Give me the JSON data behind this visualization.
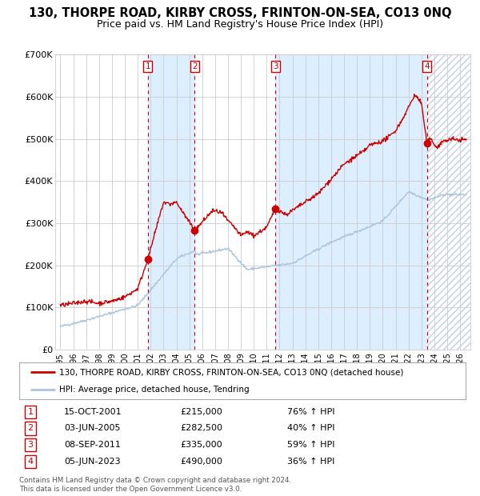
{
  "title": "130, THORPE ROAD, KIRBY CROSS, FRINTON-ON-SEA, CO13 0NQ",
  "subtitle": "Price paid vs. HM Land Registry's House Price Index (HPI)",
  "ylim": [
    0,
    700000
  ],
  "yticks": [
    0,
    100000,
    200000,
    300000,
    400000,
    500000,
    600000,
    700000
  ],
  "ytick_labels": [
    "£0",
    "£100K",
    "£200K",
    "£300K",
    "£400K",
    "£500K",
    "£600K",
    "£700K"
  ],
  "xlim_start": 1994.6,
  "xlim_end": 2026.8,
  "purchases": [
    {
      "num": 1,
      "date": "15-OCT-2001",
      "year": 2001.79,
      "price": 215000,
      "pct": "76%",
      "dir": "↑"
    },
    {
      "num": 2,
      "date": "03-JUN-2005",
      "year": 2005.42,
      "price": 282500,
      "pct": "40%",
      "dir": "↑"
    },
    {
      "num": 3,
      "date": "08-SEP-2011",
      "year": 2011.69,
      "price": 335000,
      "pct": "59%",
      "dir": "↑"
    },
    {
      "num": 4,
      "date": "05-JUN-2023",
      "year": 2023.42,
      "price": 490000,
      "pct": "36%",
      "dir": "↑"
    }
  ],
  "hpi_line_color": "#aac4dd",
  "price_line_color": "#cc0000",
  "dot_color": "#cc0000",
  "vline_color": "#cc0000",
  "shade_color": "#ddeeff",
  "hatch_color": "#bbccdd",
  "background_color": "#ffffff",
  "grid_color": "#cccccc",
  "legend_label_red": "130, THORPE ROAD, KIRBY CROSS, FRINTON-ON-SEA, CO13 0NQ (detached house)",
  "legend_label_blue": "HPI: Average price, detached house, Tendring",
  "footer": "Contains HM Land Registry data © Crown copyright and database right 2024.\nThis data is licensed under the Open Government Licence v3.0.",
  "title_fontsize": 10.5,
  "subtitle_fontsize": 9,
  "xtick_years": [
    1995,
    1996,
    1997,
    1998,
    1999,
    2000,
    2001,
    2002,
    2003,
    2004,
    2005,
    2006,
    2007,
    2008,
    2009,
    2010,
    2011,
    2012,
    2013,
    2014,
    2015,
    2016,
    2017,
    2018,
    2019,
    2020,
    2021,
    2022,
    2023,
    2024,
    2025,
    2026
  ],
  "xtick_labels": [
    "1995",
    "1996",
    "1997",
    "1998",
    "1999",
    "2000",
    "2001",
    "2002",
    "2003",
    "2004",
    "2005",
    "2006",
    "2007",
    "2008",
    "2009",
    "2010",
    "2011",
    "2012",
    "2013",
    "2014",
    "2015",
    "2016",
    "2017",
    "2018",
    "2019",
    "2020",
    "2021",
    "2022",
    "2023",
    "2024",
    "2025",
    "2026"
  ]
}
